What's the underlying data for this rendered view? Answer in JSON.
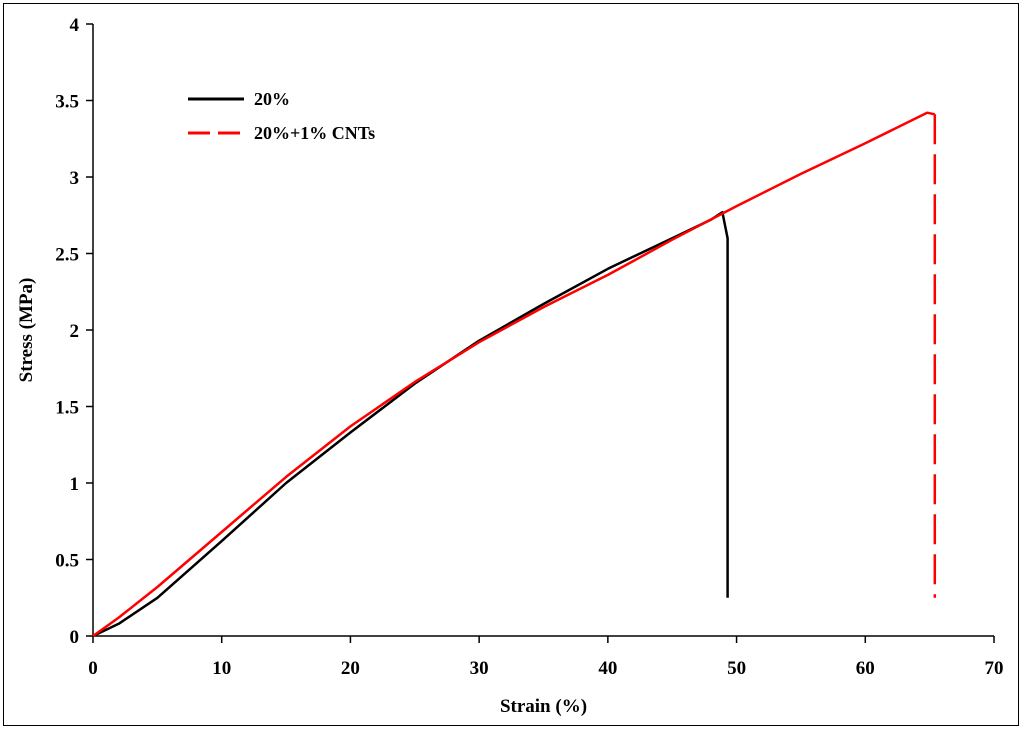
{
  "chart_data": {
    "type": "line",
    "xlabel": "Strain (%)",
    "ylabel": "Stress (MPa)",
    "xlim": [
      0,
      70
    ],
    "ylim": [
      0,
      4
    ],
    "x_ticks": [
      "0",
      "10",
      "20",
      "30",
      "40",
      "50",
      "60",
      "70"
    ],
    "y_ticks": [
      "0",
      "0.5",
      "1",
      "1.5",
      "2",
      "2.5",
      "3",
      "3.5",
      "4"
    ],
    "grid": false,
    "legend_position": "top-left",
    "series": [
      {
        "name": "20%",
        "color": "#000000",
        "dash": "solid",
        "x": [
          0,
          2,
          5,
          10,
          15,
          20,
          25,
          30,
          35,
          40,
          45,
          48,
          48.9,
          49.3,
          49.3
        ],
        "y": [
          0,
          0.08,
          0.25,
          0.62,
          1.0,
          1.33,
          1.65,
          1.93,
          2.17,
          2.4,
          2.6,
          2.72,
          2.77,
          2.6,
          0.25
        ]
      },
      {
        "name": "20%+1% CNTs",
        "color": "#ff0000",
        "dash": "dashed",
        "x": [
          0,
          2,
          5,
          10,
          15,
          20,
          25,
          30,
          35,
          40,
          45,
          50,
          55,
          60,
          64.8,
          65.4,
          65.4
        ],
        "y": [
          0,
          0.12,
          0.32,
          0.68,
          1.04,
          1.37,
          1.66,
          1.92,
          2.15,
          2.36,
          2.59,
          2.81,
          3.02,
          3.22,
          3.42,
          3.41,
          0.25
        ]
      }
    ]
  }
}
